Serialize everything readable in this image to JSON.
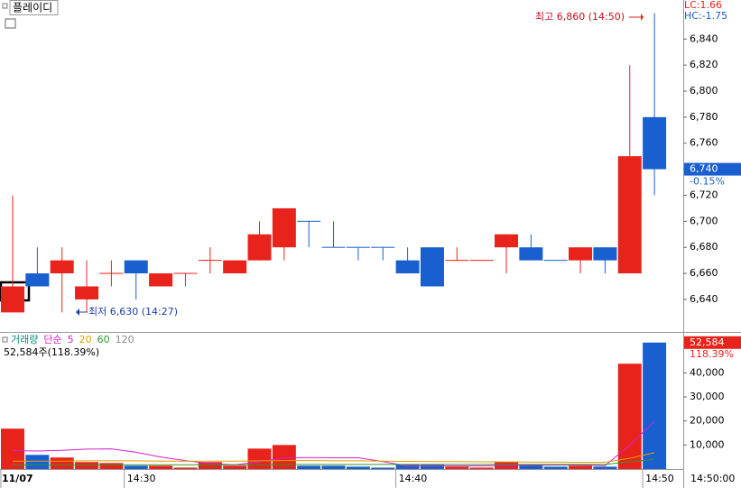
{
  "header": {
    "title": "플레이디"
  },
  "chart_data": [
    {
      "type": "candlestick",
      "categories": [
        "11/07",
        null,
        null,
        null,
        null,
        "14:30",
        null,
        null,
        null,
        null,
        null,
        null,
        null,
        null,
        null,
        null,
        "14:40",
        null,
        null,
        null,
        null,
        null,
        null,
        null,
        null,
        null,
        "14:50"
      ],
      "open": [
        6630,
        6660,
        6660,
        6640,
        6660,
        6670,
        6650,
        6660,
        6670,
        6660,
        6670,
        6680,
        6700,
        6680,
        6680,
        6680,
        6670,
        6680,
        6670,
        6670,
        6680,
        6680,
        6670,
        6670,
        6680,
        6660,
        6780
      ],
      "high": [
        6720,
        6680,
        6680,
        6670,
        6670,
        6670,
        6660,
        6660,
        6680,
        6670,
        6700,
        6710,
        6700,
        6700,
        6680,
        6680,
        6680,
        6680,
        6680,
        6670,
        6690,
        6690,
        6670,
        6680,
        6680,
        6820,
        6860
      ],
      "low": [
        6630,
        6650,
        6630,
        6630,
        6650,
        6640,
        6650,
        6650,
        6660,
        6660,
        6670,
        6670,
        6680,
        6680,
        6670,
        6670,
        6660,
        6650,
        6670,
        6670,
        6660,
        6670,
        6670,
        6660,
        6660,
        6660,
        6720
      ],
      "close": [
        6650,
        6650,
        6670,
        6650,
        6660,
        6660,
        6660,
        6660,
        6670,
        6670,
        6690,
        6710,
        6700,
        6680,
        6680,
        6680,
        6660,
        6650,
        6670,
        6670,
        6690,
        6670,
        6670,
        6680,
        6670,
        6750,
        6740
      ],
      "colors": [
        "#e8231b",
        "#1a5fcf",
        "#e8231b",
        "#e8231b",
        "#e8231b",
        "#1a5fcf",
        "#e8231b",
        "#e8231b",
        "#e8231b",
        "#e8231b",
        "#e8231b",
        "#e8231b",
        "#1a5fcf",
        "#1a5fcf",
        "#1a5fcf",
        "#1a5fcf",
        "#1a5fcf",
        "#1a5fcf",
        "#e8231b",
        "#e8231b",
        "#e8231b",
        "#1a5fcf",
        "#1a5fcf",
        "#e8231b",
        "#1a5fcf",
        "#e8231b",
        "#1a5fcf"
      ],
      "ylim": [
        6615,
        6870
      ],
      "yticks": [
        {
          "value": 6640,
          "label": "6,640"
        },
        {
          "value": 6660,
          "label": "6,660"
        },
        {
          "value": 6680,
          "label": "6,680"
        },
        {
          "value": 6700,
          "label": "6,700"
        },
        {
          "value": 6720,
          "label": "6,720"
        },
        {
          "value": 6740,
          "label": "6,740"
        },
        {
          "value": 6760,
          "label": "6,760"
        },
        {
          "value": 6780,
          "label": "6,780"
        },
        {
          "value": 6800,
          "label": "6,800"
        },
        {
          "value": 6820,
          "label": "6,820"
        },
        {
          "value": 6840,
          "label": "6,840"
        }
      ],
      "annotations": {
        "high": "최고 6,860 (14:50)",
        "low": "최저 6,630 (14:27)"
      },
      "lc": "LC:1.66",
      "hc": "HC:-1.75",
      "last_price": {
        "value": 6740,
        "label": "6,740"
      },
      "change": "-0.15%"
    },
    {
      "type": "bar",
      "legend_prefix": "단순",
      "info": "52,584주(118.39%)",
      "series": [
        {
          "name": "거래량",
          "color": "#0b8f7a",
          "values": [
            16800,
            5900,
            4800,
            2900,
            2500,
            1400,
            1400,
            600,
            2900,
            1400,
            8500,
            10000,
            1400,
            1400,
            1000,
            600,
            1800,
            1800,
            1000,
            600,
            2900,
            1800,
            1000,
            1400,
            1000,
            43800,
            52584
          ]
        },
        {
          "name": "5",
          "color": "#d21fd2",
          "values": [
            7700,
            7500,
            7800,
            8300,
            8400,
            7000,
            5000,
            3500,
            2300,
            1800,
            3000,
            4700,
            4800,
            4700,
            4700,
            3100,
            1200,
            1300,
            1300,
            1300,
            1500,
            1600,
            1700,
            1700,
            1400,
            10000,
            19900
          ]
        },
        {
          "name": "20",
          "color": "#e0a000",
          "values": [
            3300,
            3300,
            3300,
            3400,
            3400,
            3400,
            3300,
            3300,
            3300,
            3300,
            3400,
            3500,
            3500,
            3400,
            3400,
            3300,
            3200,
            3100,
            3100,
            3000,
            3000,
            2900,
            2900,
            2800,
            2800,
            4500,
            6800
          ]
        },
        {
          "name": "60",
          "color": "#2c9a2c",
          "values": [
            1800,
            1800,
            1800,
            1800,
            1800,
            1800,
            1800,
            1800,
            1800,
            1800,
            1800,
            1900,
            1900,
            1900,
            1900,
            1900,
            1900,
            1900,
            1900,
            1900,
            1900,
            1900,
            1900,
            1900,
            1900,
            3000,
            4000
          ]
        },
        {
          "name": "120",
          "color": "#888888",
          "values": [
            null,
            null,
            null,
            null,
            null,
            null,
            null,
            null,
            null,
            null,
            null,
            null,
            null,
            null,
            null,
            null,
            null,
            null,
            null,
            null,
            null,
            null,
            null,
            null,
            null,
            null,
            null
          ]
        }
      ],
      "ylim": [
        0,
        57000
      ],
      "yticks": [
        {
          "value": 10000,
          "label": "10,000"
        },
        {
          "value": 20000,
          "label": "20,000"
        },
        {
          "value": 30000,
          "label": "30,000"
        },
        {
          "value": 40000,
          "label": "40,000"
        }
      ],
      "last_volume": {
        "value": 52584,
        "label": "52,584"
      },
      "last_ratio": "118.39%",
      "cursor_time": "14:50:00"
    }
  ]
}
